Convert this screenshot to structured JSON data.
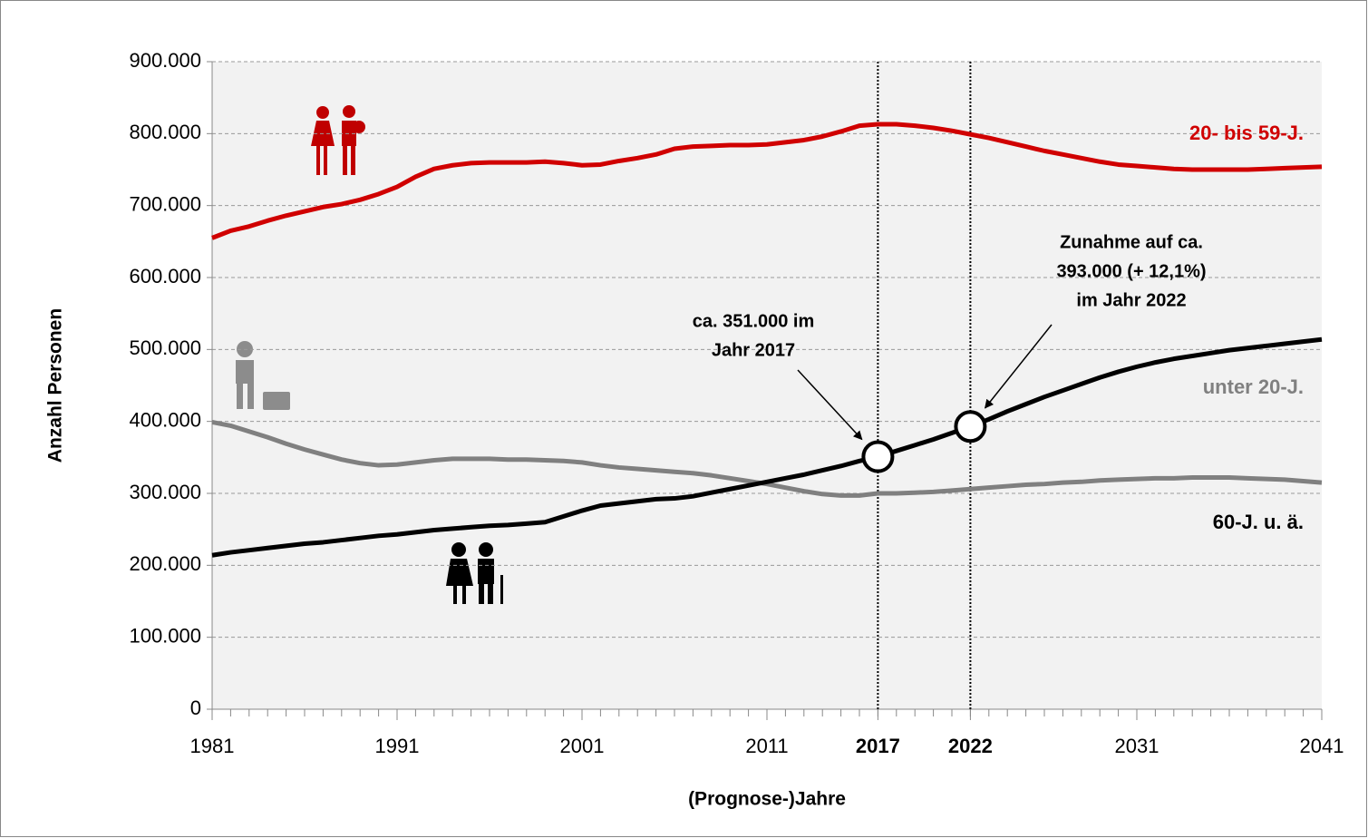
{
  "chart_data": {
    "type": "line",
    "x_label": "(Prognose-)Jahre",
    "y_label": "Anzahl Personen",
    "x": [
      1981,
      1982,
      1983,
      1984,
      1985,
      1986,
      1987,
      1988,
      1989,
      1990,
      1991,
      1992,
      1993,
      1994,
      1995,
      1996,
      1997,
      1998,
      1999,
      2000,
      2001,
      2002,
      2003,
      2004,
      2005,
      2006,
      2007,
      2008,
      2009,
      2010,
      2011,
      2012,
      2013,
      2014,
      2015,
      2016,
      2017,
      2018,
      2019,
      2020,
      2021,
      2022,
      2023,
      2024,
      2025,
      2026,
      2027,
      2028,
      2029,
      2030,
      2031,
      2032,
      2033,
      2034,
      2035,
      2036,
      2037,
      2038,
      2039,
      2040,
      2041
    ],
    "series": [
      {
        "name": "20- bis 59-J.",
        "color": "#d00000",
        "values": [
          655000,
          665000,
          671000,
          679000,
          686000,
          692000,
          698000,
          702000,
          708000,
          716000,
          726000,
          740000,
          751000,
          756000,
          759000,
          760000,
          760000,
          760000,
          761000,
          759000,
          756000,
          757000,
          762000,
          766000,
          771000,
          779000,
          782000,
          783000,
          784000,
          784000,
          785000,
          788000,
          791000,
          796000,
          803000,
          811000,
          813000,
          813000,
          811000,
          808000,
          804000,
          799000,
          794000,
          788000,
          782000,
          776000,
          771000,
          766000,
          761000,
          757000,
          755000,
          753000,
          751000,
          750000,
          750000,
          750000,
          750000,
          751000,
          752000,
          753000,
          754000
        ]
      },
      {
        "name": "unter 20-J.",
        "color": "#808080",
        "values": [
          399000,
          394000,
          386000,
          378000,
          369000,
          361000,
          354000,
          347000,
          342000,
          339000,
          340000,
          343000,
          346000,
          348000,
          348000,
          348000,
          347000,
          347000,
          346000,
          345000,
          343000,
          339000,
          336000,
          334000,
          332000,
          330000,
          328000,
          325000,
          321000,
          317000,
          313000,
          308000,
          303000,
          299000,
          297000,
          297000,
          300000,
          300000,
          301000,
          302000,
          304000,
          306000,
          308000,
          310000,
          312000,
          313000,
          315000,
          316000,
          318000,
          319000,
          320000,
          321000,
          321000,
          322000,
          322000,
          322000,
          321000,
          320000,
          319000,
          317000,
          315000
        ]
      },
      {
        "name": "60-J. u. ä.",
        "color": "#000000",
        "markers": true,
        "values": [
          214000,
          218000,
          221000,
          224000,
          227000,
          230000,
          232000,
          235000,
          238000,
          241000,
          243000,
          246000,
          249000,
          251000,
          253000,
          255000,
          256000,
          258000,
          260000,
          268000,
          276000,
          283000,
          286000,
          289000,
          292000,
          293000,
          296000,
          301000,
          306000,
          311000,
          316000,
          321000,
          326000,
          332000,
          338000,
          345000,
          351000,
          359000,
          367000,
          375000,
          384000,
          393000,
          403000,
          414000,
          424000,
          434000,
          443000,
          452000,
          461000,
          469000,
          476000,
          482000,
          487000,
          491000,
          495000,
          499000,
          502000,
          505000,
          508000,
          511000,
          514000
        ]
      }
    ],
    "xlim": [
      1981,
      2041
    ],
    "xticks": [
      1981,
      1991,
      2001,
      2011,
      2017,
      2022,
      2031,
      2041
    ],
    "ylim": [
      0,
      900000
    ],
    "yticks": [
      0,
      {
        "value": 100000,
        "label": "100.000"
      },
      {
        "value": 200000,
        "label": "200.000"
      },
      {
        "value": 300000,
        "label": "300.000"
      },
      {
        "value": 400000,
        "label": "400.000"
      },
      {
        "value": 500000,
        "label": "500.000"
      },
      {
        "value": 600000,
        "label": "600.000"
      },
      {
        "value": 700000,
        "label": "700.000"
      },
      {
        "value": 800000,
        "label": "800.000"
      },
      {
        "value": 900000,
        "label": "900.000"
      }
    ],
    "grid": true,
    "reference_lines": [
      2017,
      2022
    ],
    "annotations": [
      {
        "lines": [
          "ca. 351.000 im",
          "Jahr 2017"
        ]
      },
      {
        "lines": [
          "Zunahme auf ca.",
          "393.000 (+ 12,1%)",
          "im Jahr 2022"
        ]
      }
    ]
  }
}
